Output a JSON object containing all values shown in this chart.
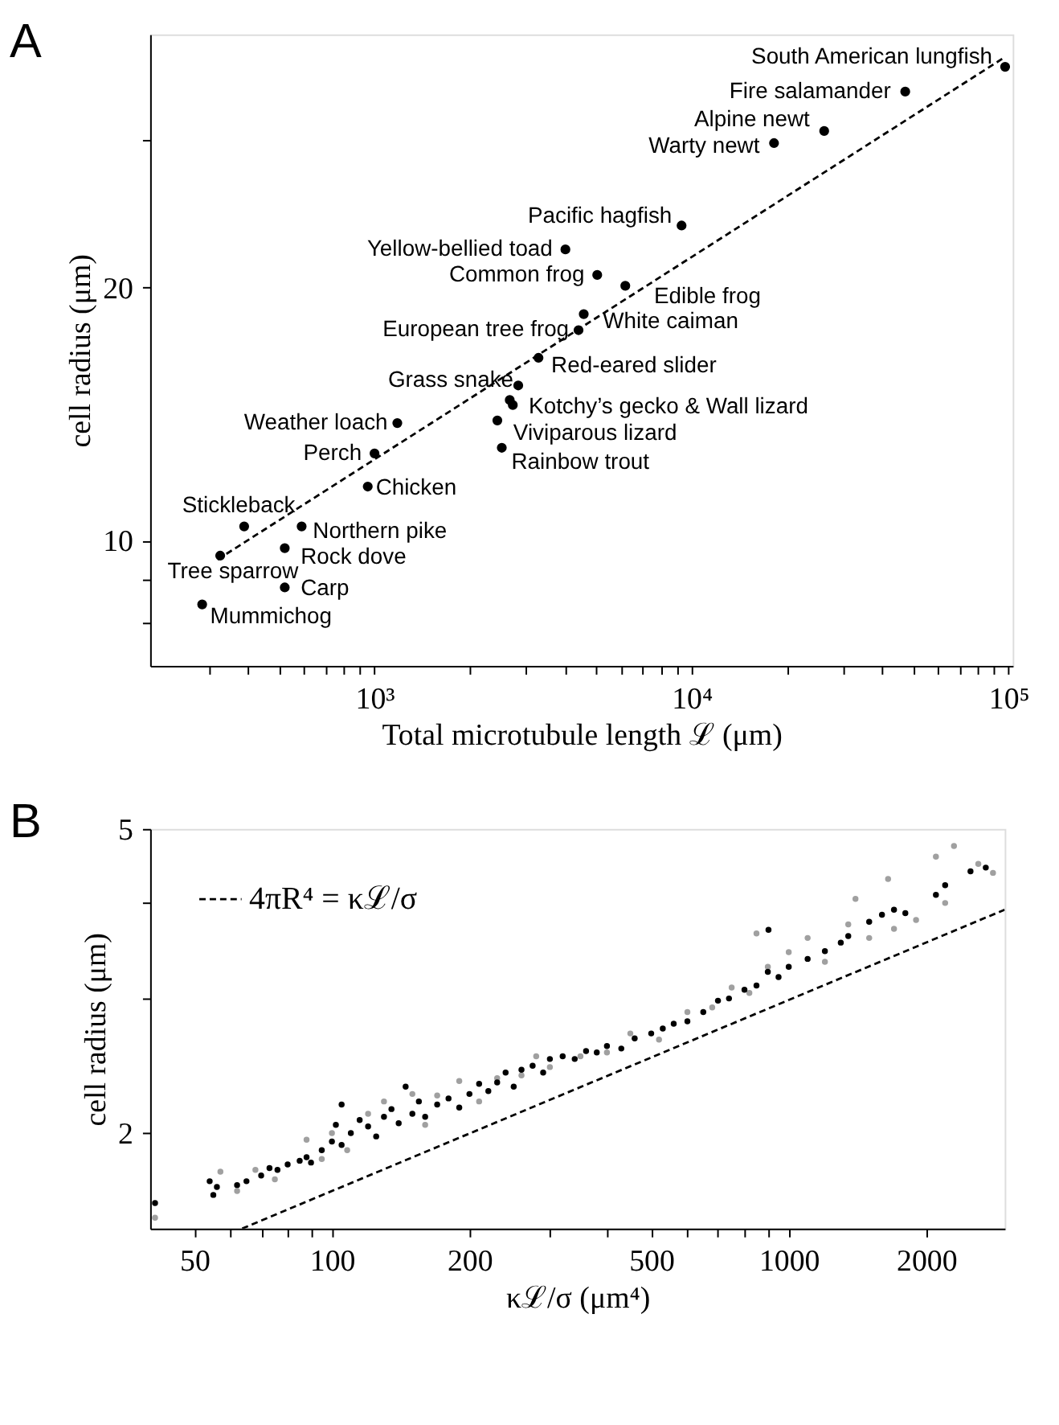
{
  "chart_data": [
    {
      "type": "scatter",
      "title": "A",
      "xlabel": "Total microtubule length ℒ (μm)",
      "ylabel": "cell radius (μm)",
      "log": "xy",
      "marker": "circle",
      "xlim": [
        196,
        103000
      ],
      "xticks": [
        {
          "value": 300,
          "label": null
        },
        {
          "value": 400,
          "label": null
        },
        {
          "value": 500,
          "label": null
        },
        {
          "value": 600,
          "label": null
        },
        {
          "value": 700,
          "label": null
        },
        {
          "value": 800,
          "label": null
        },
        {
          "value": 900,
          "label": null
        },
        {
          "value": 1000,
          "label": "10³"
        },
        {
          "value": 2000,
          "label": null
        },
        {
          "value": 3000,
          "label": null
        },
        {
          "value": 4000,
          "label": null
        },
        {
          "value": 5000,
          "label": null
        },
        {
          "value": 6000,
          "label": null
        },
        {
          "value": 7000,
          "label": null
        },
        {
          "value": 8000,
          "label": null
        },
        {
          "value": 9000,
          "label": null
        },
        {
          "value": 10000,
          "label": "10⁴"
        },
        {
          "value": 20000,
          "label": null
        },
        {
          "value": 30000,
          "label": null
        },
        {
          "value": 40000,
          "label": null
        },
        {
          "value": 50000,
          "label": null
        },
        {
          "value": 60000,
          "label": null
        },
        {
          "value": 70000,
          "label": null
        },
        {
          "value": 80000,
          "label": null
        },
        {
          "value": 90000,
          "label": null
        },
        {
          "value": 100000,
          "label": "10⁵"
        }
      ],
      "ylim": [
        7.1,
        40
      ],
      "yticks": [
        {
          "value": 8,
          "label": null
        },
        {
          "value": 9,
          "label": null
        },
        10,
        20,
        {
          "value": 30,
          "label": null
        }
      ],
      "series": [
        {
          "color": "#000000",
          "x": [
            97500,
            47200,
            26200,
            18200,
            9300,
            4000,
            5040,
            6180,
            4570,
            4400,
            3290,
            2840,
            2670,
            2730,
            2440,
            2520,
            1180,
            1000,
            952,
            388,
            589,
            521,
            326,
            521,
            286
          ],
          "values": [
            36.6,
            34.2,
            30.7,
            29.7,
            23.7,
            22.2,
            20.7,
            20.1,
            18.6,
            17.8,
            16.5,
            15.3,
            14.7,
            14.5,
            13.9,
            12.9,
            13.8,
            12.7,
            11.6,
            10.4,
            10.4,
            9.8,
            9.6,
            8.8,
            8.4
          ]
        },
        {
          "type": "line",
          "marker": "none",
          "line_style": "dashed",
          "color": "#000000",
          "x": [
            320,
            97500
          ],
          "values": [
            9.5,
            37.6
          ]
        }
      ],
      "annotations": [
        {
          "text": "South American lungfish",
          "x": 97500,
          "y": 36.6
        },
        {
          "text": "Fire salamander",
          "x": 47200,
          "y": 34.2
        },
        {
          "text": "Alpine newt",
          "x": 26200,
          "y": 30.7
        },
        {
          "text": "Warty newt",
          "x": 18200,
          "y": 29.7
        },
        {
          "text": "Pacific hagfish",
          "x": 9300,
          "y": 23.7
        },
        {
          "text": "Yellow-bellied toad",
          "x": 4000,
          "y": 22.2
        },
        {
          "text": "Common frog",
          "x": 5040,
          "y": 20.7
        },
        {
          "text": "Edible frog",
          "x": 6180,
          "y": 20.1
        },
        {
          "text": "White caiman",
          "x": 4570,
          "y": 18.6
        },
        {
          "text": "European tree frog",
          "x": 4400,
          "y": 17.8
        },
        {
          "text": "Red-eared slider",
          "x": 3290,
          "y": 16.5
        },
        {
          "text": "Grass snake",
          "x": 2840,
          "y": 15.3
        },
        {
          "text": "Kotchy’s gecko & Wall lizard",
          "x": 2730,
          "y": 14.5
        },
        {
          "text": "Viviparous lizard",
          "x": 2440,
          "y": 13.9
        },
        {
          "text": "Rainbow trout",
          "x": 2520,
          "y": 12.9
        },
        {
          "text": "Weather loach",
          "x": 1180,
          "y": 13.8
        },
        {
          "text": "Perch",
          "x": 1000,
          "y": 12.7
        },
        {
          "text": "Chicken",
          "x": 952,
          "y": 11.6
        },
        {
          "text": "Stickleback",
          "x": 388,
          "y": 10.4
        },
        {
          "text": "Northern pike",
          "x": 589,
          "y": 10.4
        },
        {
          "text": "Rock dove",
          "x": 521,
          "y": 9.8
        },
        {
          "text": "Tree sparrow",
          "x": 326,
          "y": 9.6
        },
        {
          "text": "Carp",
          "x": 521,
          "y": 8.8
        },
        {
          "text": "Mummichog",
          "x": 286,
          "y": 8.4
        }
      ]
    },
    {
      "type": "scatter",
      "title": "B",
      "xlabel": "κℒ/σ (μm⁴)",
      "ylabel": "cell radius (μm)",
      "log": "xy",
      "marker": "circle",
      "legend": "top left",
      "xlim": [
        40,
        2970
      ],
      "xticks": [
        50,
        {
          "value": 60,
          "label": null
        },
        {
          "value": 70,
          "label": null
        },
        {
          "value": 80,
          "label": null
        },
        {
          "value": 90,
          "label": null
        },
        100,
        200,
        {
          "value": 300,
          "label": null
        },
        {
          "value": 400,
          "label": null
        },
        500,
        {
          "value": 600,
          "label": null
        },
        {
          "value": 700,
          "label": null
        },
        {
          "value": 800,
          "label": null
        },
        {
          "value": 900,
          "label": null
        },
        1000,
        2000
      ],
      "ylim": [
        1.5,
        5
      ],
      "yticks": [
        2,
        {
          "value": 3,
          "label": null
        },
        {
          "value": 4,
          "label": null
        },
        5
      ],
      "series": [
        {
          "color": "#a0a0a0",
          "x": [
            41,
            57,
            62,
            68,
            75,
            88,
            95,
            100,
            108,
            120,
            130,
            150,
            160,
            170,
            190,
            210,
            230,
            260,
            280,
            300,
            350,
            400,
            450,
            520,
            600,
            680,
            750,
            820,
            850,
            900,
            1000,
            1100,
            1200,
            1350,
            1400,
            1500,
            1650,
            1700,
            1900,
            2100,
            2200,
            2300,
            2600,
            2800
          ],
          "values": [
            1.55,
            1.78,
            1.68,
            1.79,
            1.74,
            1.96,
            1.85,
            2.0,
            1.9,
            2.12,
            2.2,
            2.25,
            2.05,
            2.24,
            2.34,
            2.2,
            2.36,
            2.38,
            2.52,
            2.44,
            2.52,
            2.55,
            2.7,
            2.65,
            2.88,
            2.92,
            3.1,
            3.05,
            3.65,
            3.3,
            3.45,
            3.6,
            3.35,
            3.75,
            4.05,
            3.6,
            4.3,
            3.7,
            3.8,
            4.6,
            4.0,
            4.75,
            4.5,
            4.38
          ]
        },
        {
          "color": "#000000",
          "x": [
            41,
            54,
            55,
            56,
            62,
            65,
            70,
            73,
            76,
            80,
            85,
            88,
            90,
            95,
            100,
            102,
            105,
            105,
            110,
            115,
            120,
            125,
            130,
            135,
            140,
            145,
            150,
            155,
            160,
            170,
            180,
            190,
            200,
            210,
            220,
            230,
            240,
            250,
            260,
            275,
            290,
            300,
            320,
            340,
            360,
            380,
            400,
            430,
            460,
            500,
            530,
            560,
            600,
            650,
            700,
            740,
            800,
            850,
            900,
            903,
            950,
            1000,
            1100,
            1200,
            1300,
            1350,
            1500,
            1600,
            1700,
            1800,
            2100,
            2200,
            2500,
            2700
          ],
          "values": [
            1.62,
            1.73,
            1.66,
            1.7,
            1.71,
            1.73,
            1.76,
            1.8,
            1.79,
            1.82,
            1.84,
            1.86,
            1.83,
            1.9,
            1.95,
            2.05,
            1.93,
            2.18,
            2.0,
            2.08,
            2.04,
            1.98,
            2.1,
            2.15,
            2.06,
            2.3,
            2.12,
            2.2,
            2.1,
            2.18,
            2.22,
            2.16,
            2.25,
            2.32,
            2.27,
            2.33,
            2.4,
            2.3,
            2.42,
            2.45,
            2.4,
            2.5,
            2.52,
            2.5,
            2.56,
            2.55,
            2.6,
            2.58,
            2.66,
            2.7,
            2.74,
            2.78,
            2.8,
            2.88,
            2.98,
            3.0,
            3.08,
            3.12,
            3.25,
            3.69,
            3.2,
            3.3,
            3.38,
            3.46,
            3.55,
            3.62,
            3.78,
            3.86,
            3.92,
            3.88,
            4.1,
            4.22,
            4.4,
            4.45
          ]
        },
        {
          "type": "line",
          "marker": "none",
          "name": "4πR⁴ = κℒ/σ",
          "line_style": "dashed",
          "color": "#000000",
          "x": [
            63.6,
            2970
          ],
          "values": [
            1.5,
            3.92
          ]
        }
      ]
    }
  ]
}
